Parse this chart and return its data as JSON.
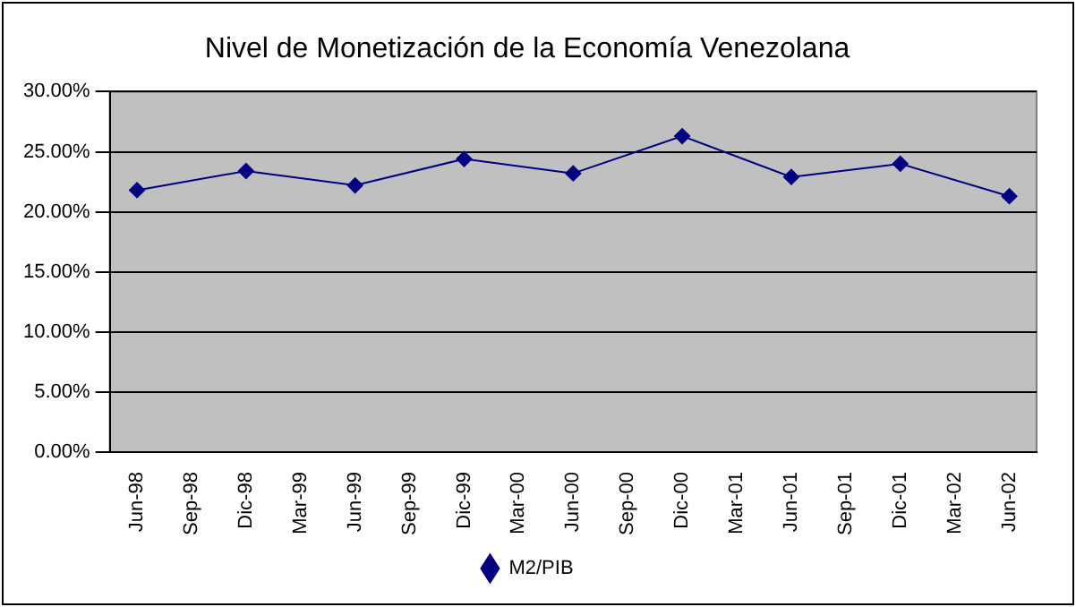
{
  "chart_data": {
    "type": "line",
    "title": "Nivel de Monetización de la Economía Venezolana",
    "categories": [
      "Jun-98",
      "Sep-98",
      "Dic-98",
      "Mar-99",
      "Jun-99",
      "Sep-99",
      "Dic-99",
      "Mar-00",
      "Jun-00",
      "Sep-00",
      "Dic-00",
      "Mar-01",
      "Jun-01",
      "Sep-01",
      "Dic-01",
      "Mar-02",
      "Jun-02"
    ],
    "series": [
      {
        "name": "M2/PIB",
        "color": "#000080",
        "values": [
          21.8,
          null,
          23.4,
          null,
          22.2,
          null,
          24.4,
          null,
          23.2,
          null,
          26.3,
          null,
          22.9,
          null,
          24.0,
          null,
          21.3
        ]
      }
    ],
    "ylim": [
      0,
      30
    ],
    "yticks": [
      {
        "value": 0,
        "label": "0.00%"
      },
      {
        "value": 5,
        "label": "5.00%"
      },
      {
        "value": 10,
        "label": "10.00%"
      },
      {
        "value": 15,
        "label": "15.00%"
      },
      {
        "value": 20,
        "label": "20.00%"
      },
      {
        "value": 25,
        "label": "25.00%"
      },
      {
        "value": 30,
        "label": "30.00%"
      }
    ],
    "grid": "y",
    "legend": "bottom",
    "marker": "diamond",
    "line_style": "solid"
  }
}
